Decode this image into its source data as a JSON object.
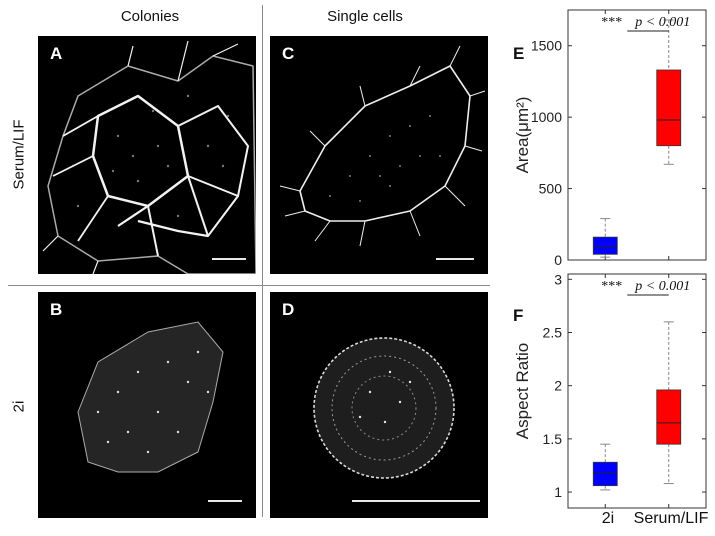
{
  "headers": {
    "colonies": "Colonies",
    "single_cells": "Single cells",
    "serum_lif": "Serum/LIF",
    "two_i": "2i"
  },
  "panels": {
    "A": "A",
    "B": "B",
    "C": "C",
    "D": "D"
  },
  "chart_data": [
    {
      "type": "box",
      "panel": "E",
      "ylabel": "Area(μm²)",
      "ylim": [
        0,
        1750
      ],
      "yticks": [
        0,
        500,
        1000,
        1500
      ],
      "grid": false,
      "annotation": {
        "stars": "***",
        "text": "p < 0.001"
      },
      "categories": [
        "2i",
        "Serum/LIF"
      ],
      "series": [
        {
          "category": "2i",
          "color": "#0000ff",
          "whisker_low": 20,
          "q1": 40,
          "median": 95,
          "q3": 160,
          "whisker_high": 290
        },
        {
          "category": "Serum/LIF",
          "color": "#ff0000",
          "whisker_low": 670,
          "q1": 800,
          "median": 980,
          "q3": 1330,
          "whisker_high": 1680
        }
      ]
    },
    {
      "type": "box",
      "panel": "F",
      "ylabel": "Aspect Ratio",
      "ylim": [
        0.85,
        3.05
      ],
      "yticks": [
        1,
        1.5,
        2,
        2.5,
        3
      ],
      "grid": false,
      "annotation": {
        "stars": "***",
        "text": "p < 0.001"
      },
      "categories": [
        "2i",
        "Serum/LIF"
      ],
      "series": [
        {
          "category": "2i",
          "color": "#0000ff",
          "whisker_low": 1.02,
          "q1": 1.06,
          "median": 1.18,
          "q3": 1.28,
          "whisker_high": 1.45
        },
        {
          "category": "Serum/LIF",
          "color": "#ff0000",
          "whisker_low": 1.08,
          "q1": 1.45,
          "median": 1.65,
          "q3": 1.96,
          "whisker_high": 2.6
        }
      ]
    }
  ]
}
